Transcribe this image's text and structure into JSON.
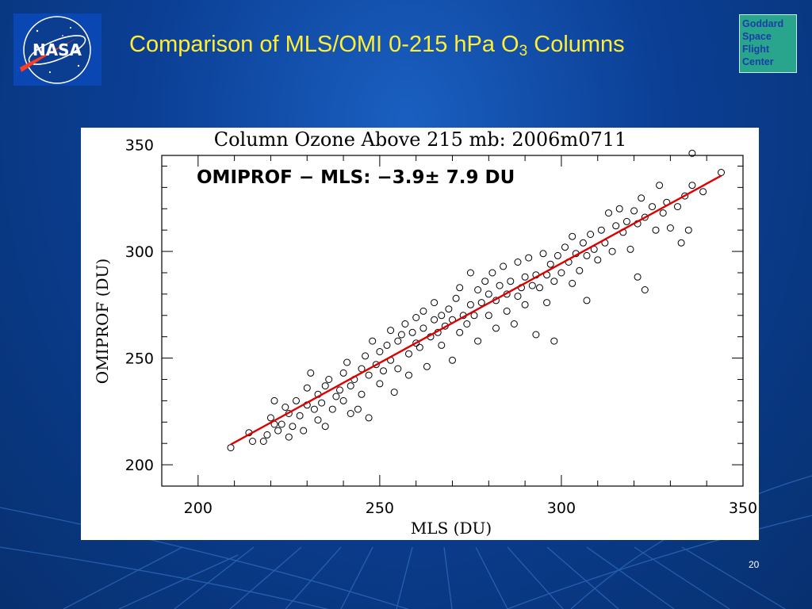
{
  "slide": {
    "title_main": "Comparison of MLS/OMI 0-215 hPa O",
    "title_sub": "3",
    "title_end": " Columns",
    "page_number": "20",
    "logo_text": "NASA",
    "badge_lines": [
      "Goddard",
      "Space",
      "Flight",
      "Center"
    ],
    "colors": {
      "background": "#0b3f95",
      "title": "#ffee33",
      "badge": "#2aa58d",
      "fit_line": "#dd0000"
    }
  },
  "chart_data": {
    "type": "scatter",
    "title": "Column Ozone Above 215 mb: 2006m0711",
    "annotation": "OMIPROF − MLS:  −3.9± 7.9 DU",
    "xlabel": "MLS (DU)",
    "ylabel": "OMIPROF (DU)",
    "xlim": [
      190,
      350
    ],
    "ylim": [
      190,
      345
    ],
    "xticks": [
      200,
      250,
      300,
      350
    ],
    "yticks": [
      200,
      250,
      300,
      350
    ],
    "grid": false,
    "marker": "open-circle",
    "fit_line": {
      "x": [
        209,
        344
      ],
      "y": [
        209.5,
        335.5
      ],
      "color": "#dd0000"
    },
    "points": [
      [
        209,
        208
      ],
      [
        214,
        215
      ],
      [
        215,
        211
      ],
      [
        218,
        211
      ],
      [
        219,
        214
      ],
      [
        220,
        222
      ],
      [
        221,
        230
      ],
      [
        221,
        219
      ],
      [
        222,
        216
      ],
      [
        223,
        219
      ],
      [
        224,
        227
      ],
      [
        225,
        213
      ],
      [
        225,
        224
      ],
      [
        226,
        218
      ],
      [
        227,
        230
      ],
      [
        228,
        223
      ],
      [
        229,
        216
      ],
      [
        230,
        228
      ],
      [
        230,
        236
      ],
      [
        231,
        243
      ],
      [
        232,
        226
      ],
      [
        233,
        221
      ],
      [
        233,
        233
      ],
      [
        234,
        229
      ],
      [
        235,
        218
      ],
      [
        235,
        237
      ],
      [
        236,
        240
      ],
      [
        237,
        226
      ],
      [
        238,
        232
      ],
      [
        239,
        235
      ],
      [
        240,
        230
      ],
      [
        240,
        243
      ],
      [
        241,
        248
      ],
      [
        242,
        224
      ],
      [
        242,
        237
      ],
      [
        243,
        240
      ],
      [
        244,
        226
      ],
      [
        245,
        233
      ],
      [
        245,
        245
      ],
      [
        246,
        251
      ],
      [
        247,
        222
      ],
      [
        247,
        242
      ],
      [
        248,
        258
      ],
      [
        249,
        247
      ],
      [
        250,
        238
      ],
      [
        250,
        253
      ],
      [
        251,
        244
      ],
      [
        252,
        256
      ],
      [
        253,
        263
      ],
      [
        253,
        249
      ],
      [
        254,
        234
      ],
      [
        255,
        245
      ],
      [
        255,
        258
      ],
      [
        256,
        261
      ],
      [
        257,
        266
      ],
      [
        258,
        252
      ],
      [
        258,
        242
      ],
      [
        259,
        262
      ],
      [
        260,
        257
      ],
      [
        260,
        269
      ],
      [
        261,
        255
      ],
      [
        262,
        264
      ],
      [
        262,
        272
      ],
      [
        263,
        246
      ],
      [
        264,
        260
      ],
      [
        265,
        268
      ],
      [
        265,
        276
      ],
      [
        266,
        262
      ],
      [
        267,
        256
      ],
      [
        267,
        270
      ],
      [
        268,
        265
      ],
      [
        269,
        273
      ],
      [
        270,
        249
      ],
      [
        270,
        268
      ],
      [
        271,
        278
      ],
      [
        272,
        262
      ],
      [
        272,
        283
      ],
      [
        273,
        270
      ],
      [
        274,
        266
      ],
      [
        275,
        275
      ],
      [
        275,
        290
      ],
      [
        276,
        270
      ],
      [
        277,
        258
      ],
      [
        277,
        282
      ],
      [
        278,
        276
      ],
      [
        279,
        286
      ],
      [
        280,
        270
      ],
      [
        280,
        280
      ],
      [
        281,
        290
      ],
      [
        282,
        264
      ],
      [
        282,
        277
      ],
      [
        283,
        284
      ],
      [
        284,
        293
      ],
      [
        285,
        272
      ],
      [
        285,
        280
      ],
      [
        286,
        286
      ],
      [
        287,
        266
      ],
      [
        288,
        279
      ],
      [
        288,
        295
      ],
      [
        289,
        283
      ],
      [
        290,
        288
      ],
      [
        290,
        275
      ],
      [
        291,
        297
      ],
      [
        292,
        284
      ],
      [
        293,
        261
      ],
      [
        293,
        289
      ],
      [
        294,
        283
      ],
      [
        295,
        299
      ],
      [
        296,
        289
      ],
      [
        296,
        276
      ],
      [
        297,
        294
      ],
      [
        298,
        258
      ],
      [
        298,
        286
      ],
      [
        299,
        298
      ],
      [
        300,
        290
      ],
      [
        301,
        302
      ],
      [
        302,
        295
      ],
      [
        303,
        285
      ],
      [
        303,
        307
      ],
      [
        304,
        299
      ],
      [
        305,
        291
      ],
      [
        306,
        304
      ],
      [
        307,
        277
      ],
      [
        307,
        298
      ],
      [
        308,
        308
      ],
      [
        309,
        301
      ],
      [
        310,
        296
      ],
      [
        311,
        310
      ],
      [
        312,
        304
      ],
      [
        313,
        318
      ],
      [
        314,
        300
      ],
      [
        315,
        312
      ],
      [
        316,
        320
      ],
      [
        317,
        309
      ],
      [
        318,
        314
      ],
      [
        319,
        301
      ],
      [
        320,
        319
      ],
      [
        321,
        288
      ],
      [
        321,
        313
      ],
      [
        322,
        325
      ],
      [
        323,
        316
      ],
      [
        323,
        282
      ],
      [
        325,
        321
      ],
      [
        326,
        310
      ],
      [
        327,
        331
      ],
      [
        328,
        318
      ],
      [
        329,
        323
      ],
      [
        330,
        311
      ],
      [
        332,
        321
      ],
      [
        333,
        304
      ],
      [
        334,
        326
      ],
      [
        335,
        310
      ],
      [
        336,
        331
      ],
      [
        336,
        346
      ],
      [
        339,
        328
      ],
      [
        344,
        337
      ]
    ]
  }
}
